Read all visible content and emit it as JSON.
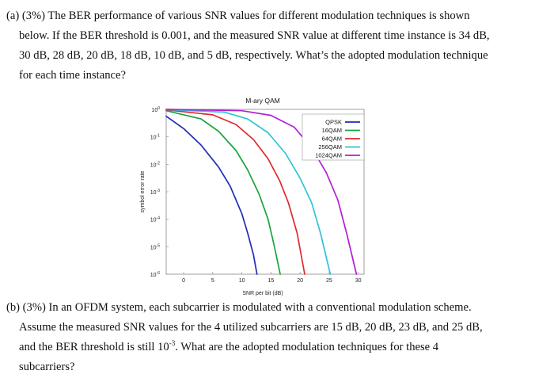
{
  "question_a": {
    "lines": [
      "(a) (3%) The BER performance of various SNR values for different modulation techniques is shown",
      "below. If the BER threshold is 0.001, and the measured SNR value at different time instance is 34 dB,",
      "30 dB, 28 dB, 20 dB, 18 dB, 10 dB, and 5 dB, respectively. What’s the adopted modulation technique",
      "for each time instance?"
    ]
  },
  "question_b": {
    "line1": "(b) (3%) In an OFDM system, each subcarrier is modulated with a conventional modulation scheme.",
    "line2": "Assume the measured SNR values for the 4 utilized subcarriers are 15 dB, 20 dB, 23 dB, and 25 dB,",
    "line3_pre": "and the BER threshold is still 10",
    "line3_sup": "-3",
    "line3_post": ". What are the adopted modulation techniques for these 4",
    "line4": "subcarriers?"
  },
  "chart_data": {
    "type": "line",
    "title": "M-ary QAM",
    "xlabel": "SNR per bit (dB)",
    "ylabel": "symbol error rate",
    "x_ticks": [
      "0",
      "5",
      "10",
      "15",
      "20",
      "25",
      "30"
    ],
    "y_ticks": [
      {
        "base": "10",
        "exp": "0"
      },
      {
        "base": "10",
        "exp": "-1"
      },
      {
        "base": "10",
        "exp": "-2"
      },
      {
        "base": "10",
        "exp": "-3"
      },
      {
        "base": "10",
        "exp": "-4"
      },
      {
        "base": "10",
        "exp": "-5"
      },
      {
        "base": "10",
        "exp": "-6"
      }
    ],
    "xlim": [
      -3,
      31
    ],
    "ylim_log10": [
      -6,
      0
    ],
    "grid": false,
    "legend_position": "top-right",
    "series": [
      {
        "name": "QPSK",
        "color": "#1f2db5",
        "x": [
          -3,
          0,
          3,
          6,
          8,
          10,
          11,
          12,
          12.6
        ],
        "log10_y": [
          -0.25,
          -0.7,
          -1.3,
          -2.1,
          -2.8,
          -3.8,
          -4.5,
          -5.3,
          -6
        ]
      },
      {
        "name": "16QAM",
        "color": "#1aa33c",
        "x": [
          -3,
          3,
          6,
          9,
          11,
          13,
          14.5,
          15.5,
          16.6
        ],
        "log10_y": [
          -0.05,
          -0.35,
          -0.8,
          -1.5,
          -2.2,
          -3.1,
          -4.0,
          -4.9,
          -6
        ]
      },
      {
        "name": "64QAM",
        "color": "#e0282e",
        "x": [
          -3,
          5,
          9,
          12,
          14.5,
          16.5,
          18,
          19.5,
          20.8
        ],
        "log10_y": [
          -0.02,
          -0.2,
          -0.55,
          -1.1,
          -1.8,
          -2.6,
          -3.4,
          -4.5,
          -6
        ]
      },
      {
        "name": "256QAM",
        "color": "#2ec4d8",
        "x": [
          -3,
          7,
          11,
          14.5,
          17.5,
          20,
          22,
          23.5,
          25.2
        ],
        "log10_y": [
          -0.01,
          -0.1,
          -0.35,
          -0.85,
          -1.6,
          -2.5,
          -3.4,
          -4.5,
          -6
        ]
      },
      {
        "name": "1024QAM",
        "color": "#b01fd6",
        "x": [
          -3,
          10,
          15,
          19,
          22,
          24.5,
          26.5,
          28,
          29.7
        ],
        "log10_y": [
          0,
          -0.05,
          -0.22,
          -0.65,
          -1.4,
          -2.3,
          -3.3,
          -4.5,
          -6
        ]
      }
    ]
  }
}
